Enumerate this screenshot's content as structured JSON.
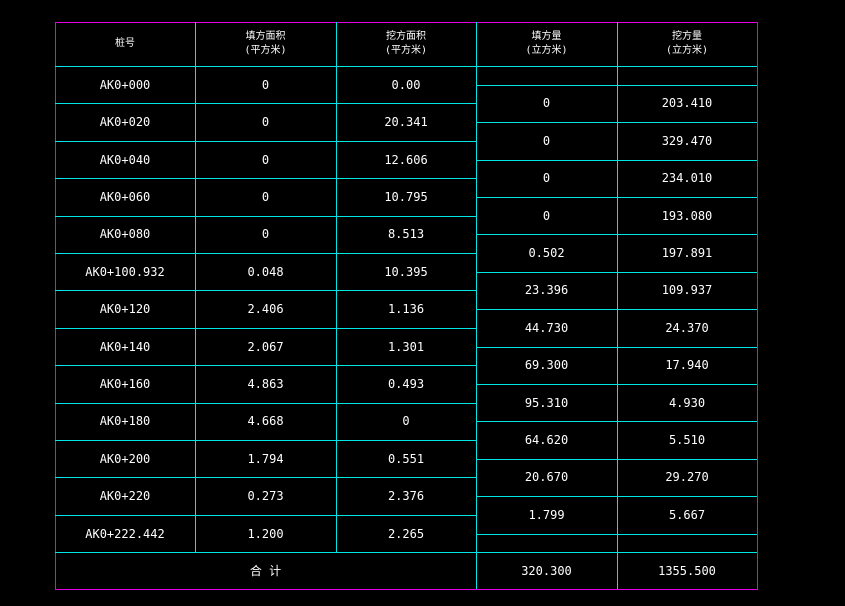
{
  "table": {
    "headers": {
      "station": "桩号",
      "fill_area": [
        "填方面积",
        "(平方米)"
      ],
      "cut_area": [
        "挖方面积",
        "(平方米)"
      ],
      "fill_volume": [
        "填方量",
        "(立方米)"
      ],
      "cut_volume": [
        "挖方量",
        "(立方米)"
      ]
    },
    "section_rows": [
      {
        "station": "AK0+000",
        "fill_area": "0",
        "cut_area": "0.00"
      },
      {
        "station": "AK0+020",
        "fill_area": "0",
        "cut_area": "20.341"
      },
      {
        "station": "AK0+040",
        "fill_area": "0",
        "cut_area": "12.606"
      },
      {
        "station": "AK0+060",
        "fill_area": "0",
        "cut_area": "10.795"
      },
      {
        "station": "AK0+080",
        "fill_area": "0",
        "cut_area": "8.513"
      },
      {
        "station": "AK0+100.932",
        "fill_area": "0.048",
        "cut_area": "10.395"
      },
      {
        "station": "AK0+120",
        "fill_area": "2.406",
        "cut_area": "1.136"
      },
      {
        "station": "AK0+140",
        "fill_area": "2.067",
        "cut_area": "1.301"
      },
      {
        "station": "AK0+160",
        "fill_area": "4.863",
        "cut_area": "0.493"
      },
      {
        "station": "AK0+180",
        "fill_area": "4.668",
        "cut_area": "0"
      },
      {
        "station": "AK0+200",
        "fill_area": "1.794",
        "cut_area": "0.551"
      },
      {
        "station": "AK0+220",
        "fill_area": "0.273",
        "cut_area": "2.376"
      },
      {
        "station": "AK0+222.442",
        "fill_area": "1.200",
        "cut_area": "2.265"
      }
    ],
    "volume_rows": [
      {
        "fill_volume": "0",
        "cut_volume": "203.410"
      },
      {
        "fill_volume": "0",
        "cut_volume": "329.470"
      },
      {
        "fill_volume": "0",
        "cut_volume": "234.010"
      },
      {
        "fill_volume": "0",
        "cut_volume": "193.080"
      },
      {
        "fill_volume": "0.502",
        "cut_volume": "197.891"
      },
      {
        "fill_volume": "23.396",
        "cut_volume": "109.937"
      },
      {
        "fill_volume": "44.730",
        "cut_volume": "24.370"
      },
      {
        "fill_volume": "69.300",
        "cut_volume": "17.940"
      },
      {
        "fill_volume": "95.310",
        "cut_volume": "4.930"
      },
      {
        "fill_volume": "64.620",
        "cut_volume": "5.510"
      },
      {
        "fill_volume": "20.670",
        "cut_volume": "29.270"
      },
      {
        "fill_volume": "1.799",
        "cut_volume": "5.667"
      }
    ],
    "total": {
      "label": "合    计",
      "fill_volume": "320.300",
      "cut_volume": "1355.500"
    }
  },
  "colors": {
    "background": "#000000",
    "outer_border": "#e600e6",
    "grid_lines": "#00e5e5",
    "text": "#ffffff"
  }
}
